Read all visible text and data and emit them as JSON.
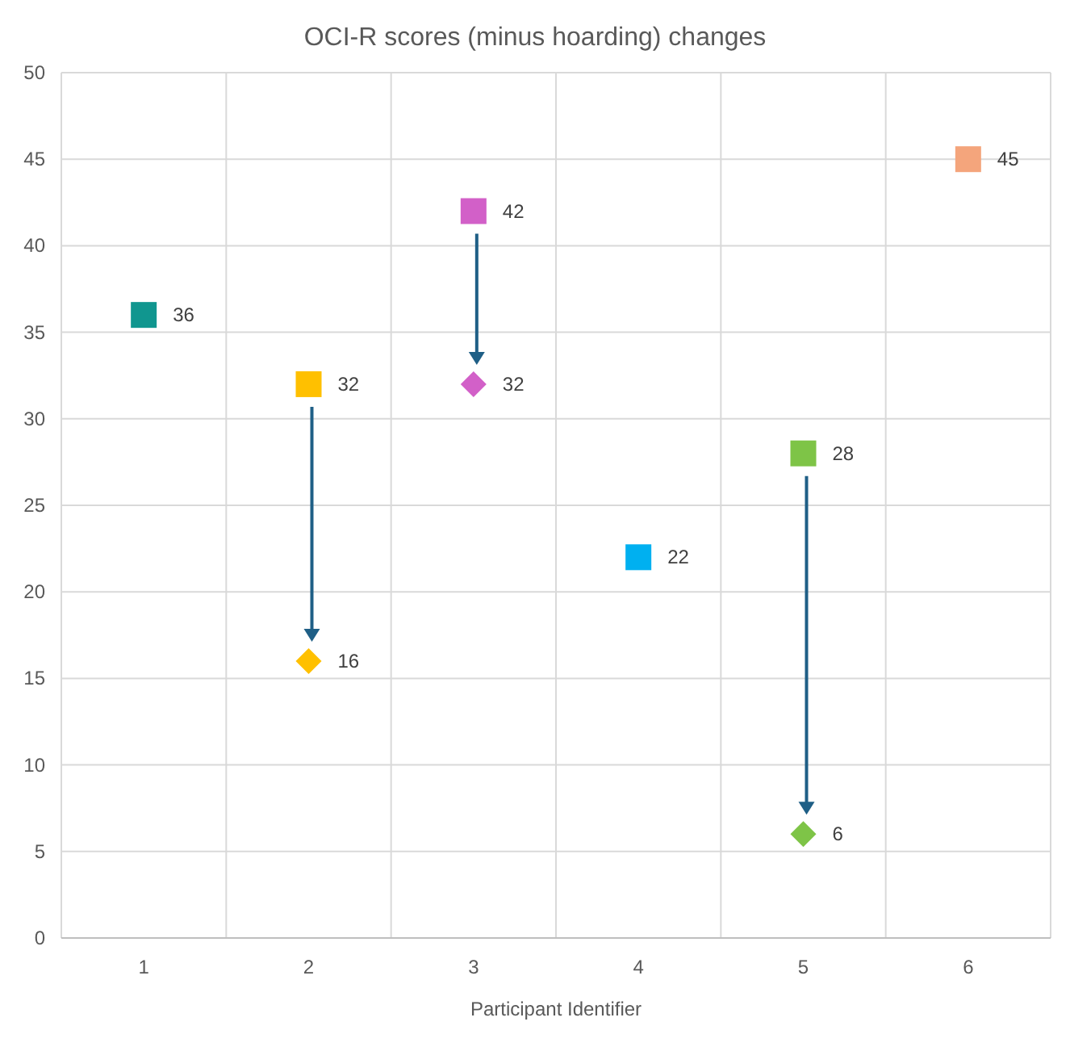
{
  "chart_data": {
    "type": "scatter",
    "title": "OCI-R scores (minus hoarding) changes",
    "xlabel": "Participant Identifier",
    "categories": [
      "1",
      "2",
      "3",
      "4",
      "5",
      "6"
    ],
    "series": [
      {
        "marker": "square",
        "colors": [
          "#10968f",
          "#ffc000",
          "#d260c8",
          "#00b0f0",
          "#7ec447",
          "#f4a57c"
        ],
        "values": [
          36,
          32,
          42,
          22,
          28,
          45
        ]
      },
      {
        "marker": "diamond",
        "colors": [
          null,
          "#ffc000",
          "#d260c8",
          null,
          "#7ec447",
          null
        ],
        "values": [
          null,
          16,
          32,
          null,
          6,
          null
        ]
      }
    ],
    "ylim": [
      0,
      50
    ],
    "yticks": [
      0,
      5,
      10,
      15,
      20,
      25,
      30,
      35,
      40,
      45,
      50
    ],
    "grid": true,
    "data_labels": true
  }
}
